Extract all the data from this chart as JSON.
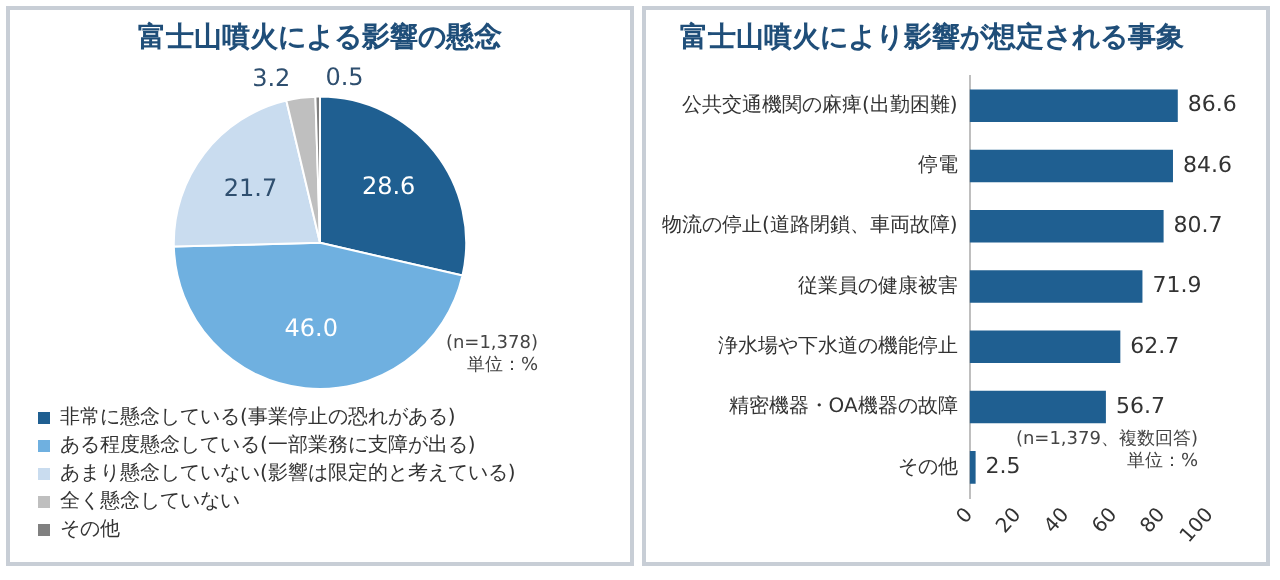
{
  "chart_data": [
    {
      "type": "pie",
      "title": "富士山噴火による影響の懸念",
      "categories": [
        "非常に懸念している(事業停止の恐れがある)",
        "ある程度懸念している(一部業務に支障が出る)",
        "あまり懸念していない(影響は限定的と考えている)",
        "全く懸念していない",
        "その他"
      ],
      "values": [
        28.6,
        46.0,
        21.7,
        3.2,
        0.5
      ],
      "colors": [
        "#1f5f91",
        "#6fb0e0",
        "#c9dcef",
        "#bfbfbf",
        "#808080"
      ],
      "value_labels": [
        "28.6",
        "46.0",
        "21.7",
        "3.2",
        "0.5"
      ],
      "legend": "bottom",
      "annotations": [
        "(n=1,378)",
        "単位：%"
      ]
    },
    {
      "type": "bar",
      "orientation": "horizontal",
      "title": "富士山噴火により影響が想定される事象",
      "categories": [
        "公共交通機関の麻痺(出勤困難)",
        "停電",
        "物流の停止(道路閉鎖、車両故障)",
        "従業員の健康被害",
        "浄水場や下水道の機能停止",
        "精密機器・OA機器の故障",
        "その他"
      ],
      "values": [
        86.6,
        84.6,
        80.7,
        71.9,
        62.7,
        56.7,
        2.5
      ],
      "color": "#1f5f91",
      "xlim": [
        0,
        100
      ],
      "xticks": [
        0,
        20,
        40,
        60,
        80,
        100
      ],
      "data_labels": true,
      "annotations": [
        "(n=1,379、複数回答)",
        "単位：%"
      ]
    }
  ]
}
